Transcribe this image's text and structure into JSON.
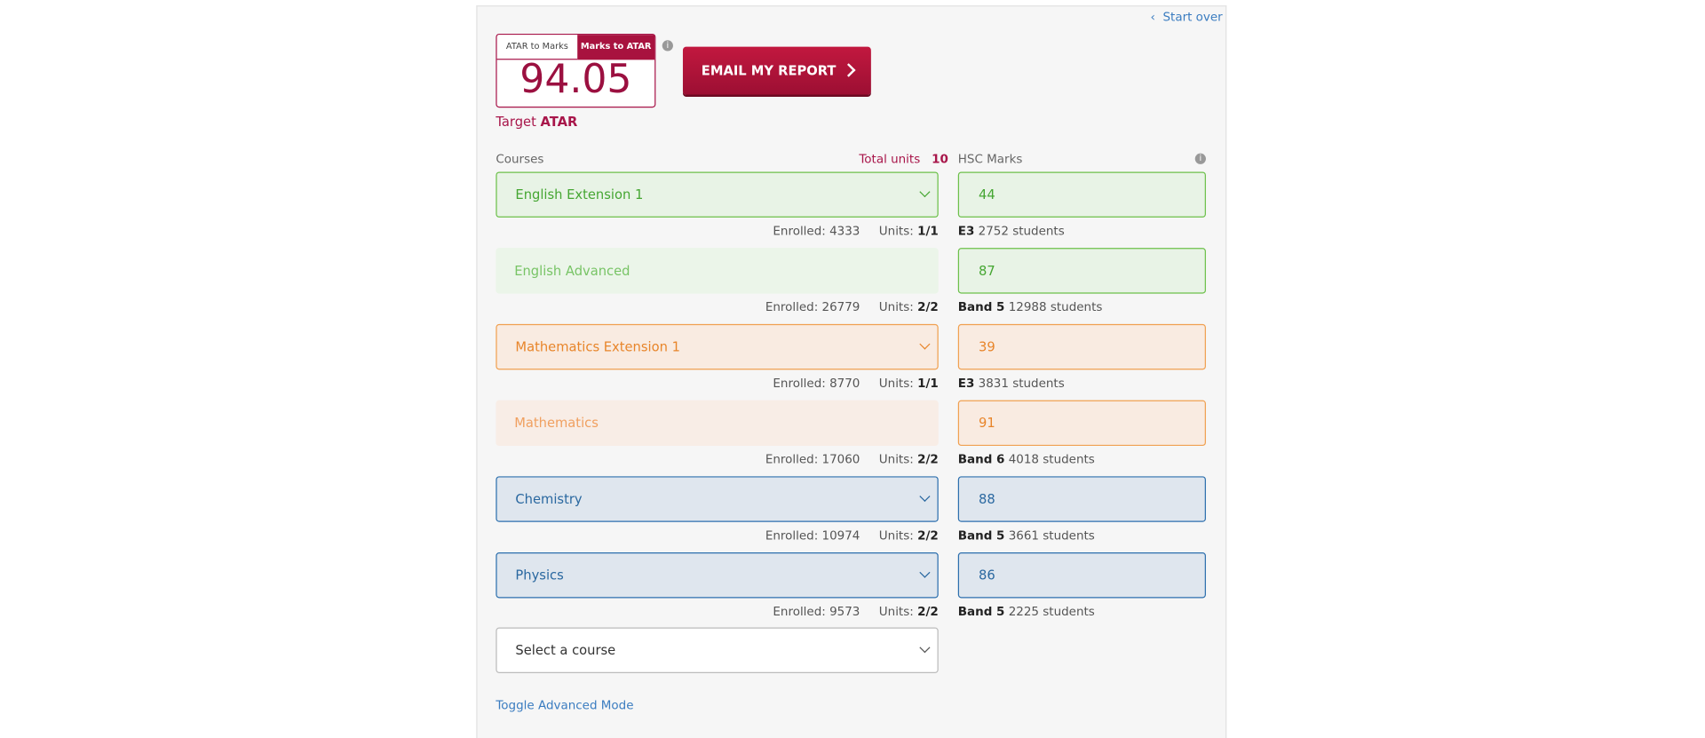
{
  "header": {
    "start_over": "Start over",
    "toggle": [
      "ATAR to Marks",
      "Marks to ATAR"
    ],
    "atar": "94.05",
    "target_label": "Target",
    "target_atar": "ATAR",
    "email": "EMAIL MY REPORT"
  },
  "columns": {
    "courses": "Courses",
    "total_units_label": "Total units",
    "total_units": "10",
    "marks": "HSC Marks"
  },
  "rows": [
    {
      "course": "English Extension 1",
      "enrolled_label": "Enrolled:",
      "enrolled": "4333",
      "units_label": "Units:",
      "units": "1/1",
      "mark": "44",
      "band": "E3",
      "students": "2752 students",
      "theme": "green",
      "dropdown": true
    },
    {
      "course": "English Advanced",
      "enrolled_label": "Enrolled:",
      "enrolled": "26779",
      "units_label": "Units:",
      "units": "2/2",
      "mark": "87",
      "band": "Band 5",
      "students": "12988 students",
      "theme": "green",
      "dropdown": false
    },
    {
      "course": "Mathematics Extension 1",
      "enrolled_label": "Enrolled:",
      "enrolled": "8770",
      "units_label": "Units:",
      "units": "1/1",
      "mark": "39",
      "band": "E3",
      "students": "3831 students",
      "theme": "orange",
      "dropdown": true
    },
    {
      "course": "Mathematics",
      "enrolled_label": "Enrolled:",
      "enrolled": "17060",
      "units_label": "Units:",
      "units": "2/2",
      "mark": "91",
      "band": "Band 6",
      "students": "4018 students",
      "theme": "orange",
      "dropdown": false
    },
    {
      "course": "Chemistry",
      "enrolled_label": "Enrolled:",
      "enrolled": "10974",
      "units_label": "Units:",
      "units": "2/2",
      "mark": "88",
      "band": "Band 5",
      "students": "3661 students",
      "theme": "blue",
      "dropdown": true
    },
    {
      "course": "Physics",
      "enrolled_label": "Enrolled:",
      "enrolled": "9573",
      "units_label": "Units:",
      "units": "2/2",
      "mark": "86",
      "band": "Band 5",
      "students": "2225 students",
      "theme": "blue",
      "dropdown": true
    }
  ],
  "select_course": "Select a course",
  "toggle_advanced": "Toggle Advanced Mode"
}
